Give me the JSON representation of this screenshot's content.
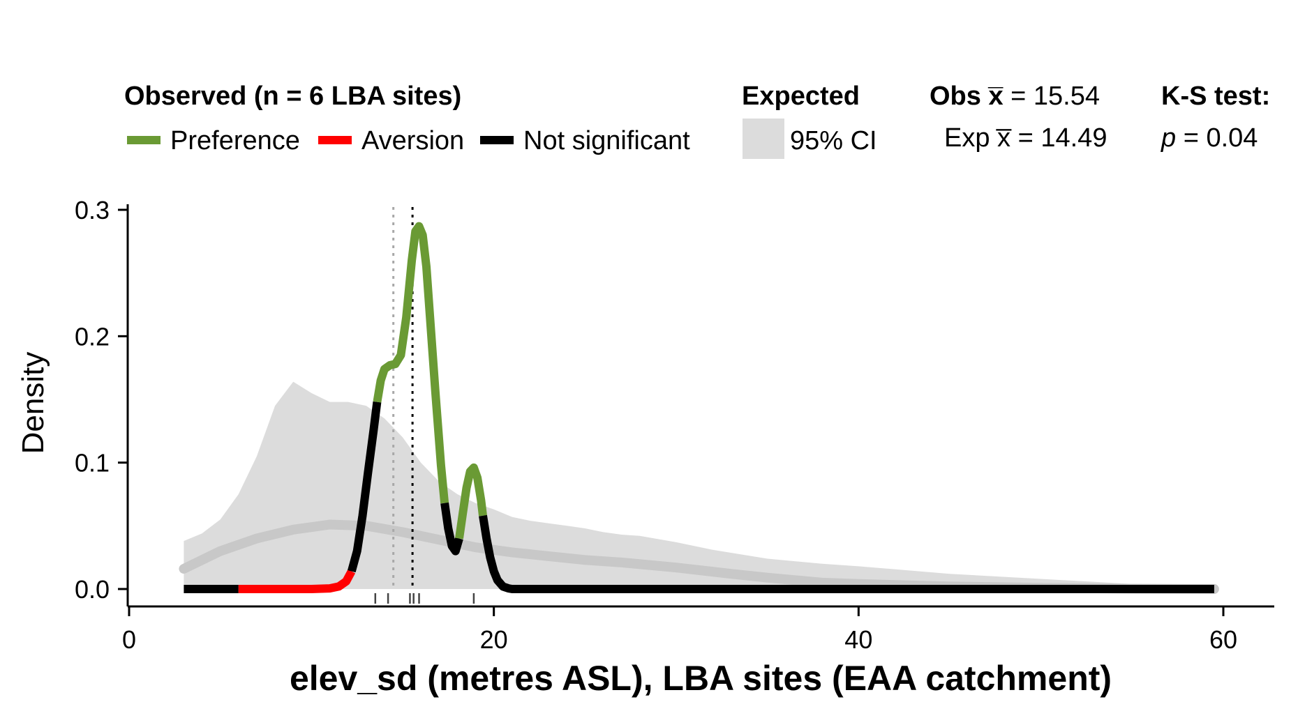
{
  "legend": {
    "observed_title": "Observed (n = 6 LBA sites)",
    "preference_label": "Preference",
    "aversion_label": "Aversion",
    "notsig_label": "Not significant",
    "expected_title": "Expected",
    "ci_label": "95% CI",
    "obs_mean_prefix": "Obs x̅",
    "obs_mean_value": " = 15.54",
    "exp_mean_prefix": "Exp x̅",
    "exp_mean_value": " = 14.49",
    "ks_title": "K-S test:",
    "ks_p_symbol": "p",
    "ks_p_value": " = 0.04"
  },
  "colors": {
    "preference": "#6a9a34",
    "aversion": "#ff0000",
    "not_significant": "#000000",
    "ci_band": "#dcdcdc",
    "expected_line": "#c8c8c8",
    "exp_mean_line": "#a8a8a8",
    "obs_mean_line": "#000000"
  },
  "chart_data": {
    "type": "line",
    "title": "",
    "xlabel": "elev_sd (metres ASL), LBA sites (EAA catchment)",
    "ylabel": "Density",
    "xlim": [
      0,
      62
    ],
    "ylim": [
      -0.012,
      0.305
    ],
    "x_ticks": [
      0,
      20,
      40,
      60
    ],
    "x_tick_labels": [
      "0",
      "20",
      "40",
      "60"
    ],
    "y_ticks": [
      0,
      0.1,
      0.2,
      0.3
    ],
    "y_tick_labels": [
      "0.0",
      "0.1",
      "0.2",
      "0.3"
    ],
    "grid": false,
    "legend_position": "top",
    "expected_ci": {
      "x": [
        3,
        4,
        5,
        6,
        7,
        8,
        9,
        10,
        11,
        12,
        13,
        14,
        15,
        16,
        17,
        18,
        19,
        20,
        21,
        22,
        23,
        24,
        25,
        26,
        27,
        28,
        30,
        32,
        35,
        38,
        40,
        45,
        50,
        55,
        58,
        59.5
      ],
      "upper": [
        0.038,
        0.044,
        0.055,
        0.075,
        0.105,
        0.145,
        0.164,
        0.155,
        0.148,
        0.148,
        0.145,
        0.135,
        0.12,
        0.1,
        0.085,
        0.075,
        0.068,
        0.063,
        0.057,
        0.054,
        0.052,
        0.05,
        0.048,
        0.045,
        0.043,
        0.042,
        0.037,
        0.031,
        0.024,
        0.02,
        0.018,
        0.012,
        0.008,
        0.004,
        0.002,
        0.001
      ],
      "lower": [
        0,
        0,
        0,
        0,
        0,
        0,
        0,
        0,
        0,
        0,
        0,
        0,
        0,
        0,
        0,
        0,
        0,
        0,
        0,
        0,
        0,
        0,
        0,
        0,
        0,
        0,
        0,
        0,
        0,
        0,
        0,
        0,
        0,
        0,
        0,
        0
      ]
    },
    "expected_mean_curve": {
      "x": [
        3,
        5,
        7,
        9,
        11,
        13,
        15,
        17,
        19,
        21,
        23,
        25,
        27,
        30,
        33,
        35,
        38,
        40,
        45,
        50,
        55,
        59.5
      ],
      "y": [
        0.016,
        0.03,
        0.04,
        0.047,
        0.051,
        0.05,
        0.045,
        0.039,
        0.033,
        0.029,
        0.026,
        0.023,
        0.021,
        0.017,
        0.012,
        0.009,
        0.005,
        0.004,
        0.002,
        0.001,
        0.0003,
        0.0
      ]
    },
    "observed_segments": [
      {
        "status": "not_significant",
        "x": [
          3,
          6
        ],
        "y": [
          0,
          0
        ]
      },
      {
        "status": "aversion",
        "x": [
          6,
          8,
          10,
          11,
          11.5,
          11.9,
          12.2
        ],
        "y": [
          0,
          0,
          0,
          0.0005,
          0.002,
          0.006,
          0.014
        ]
      },
      {
        "status": "not_significant",
        "x": [
          12.2,
          12.5,
          12.8,
          13.1,
          13.4,
          13.6
        ],
        "y": [
          0.014,
          0.03,
          0.058,
          0.092,
          0.125,
          0.148
        ]
      },
      {
        "status": "preference",
        "x": [
          13.6,
          13.8,
          14.0,
          14.3,
          14.6,
          14.9,
          15.2,
          15.5,
          15.7,
          15.9,
          16.1,
          16.3,
          16.5,
          16.8,
          17.1,
          17.3
        ],
        "y": [
          0.148,
          0.165,
          0.174,
          0.177,
          0.178,
          0.185,
          0.215,
          0.26,
          0.283,
          0.287,
          0.28,
          0.255,
          0.215,
          0.155,
          0.098,
          0.068
        ]
      },
      {
        "status": "not_significant",
        "x": [
          17.3,
          17.5,
          17.7,
          17.9,
          18.1
        ],
        "y": [
          0.068,
          0.048,
          0.034,
          0.03,
          0.04
        ]
      },
      {
        "status": "preference",
        "x": [
          18.1,
          18.3,
          18.5,
          18.7,
          18.9,
          19.1,
          19.3,
          19.4
        ],
        "y": [
          0.04,
          0.06,
          0.08,
          0.093,
          0.096,
          0.088,
          0.07,
          0.058
        ]
      },
      {
        "status": "not_significant",
        "x": [
          19.4,
          19.6,
          19.8,
          20.0,
          20.2,
          20.5,
          20.8,
          21,
          30,
          40,
          50,
          59.5
        ],
        "y": [
          0.058,
          0.04,
          0.025,
          0.014,
          0.007,
          0.002,
          0.0005,
          0,
          0,
          0,
          0,
          0
        ]
      }
    ],
    "obs_mean": 15.54,
    "exp_mean": 14.49,
    "site_rugs": [
      13.5,
      14.2,
      15.4,
      15.6,
      15.9,
      18.9
    ]
  }
}
